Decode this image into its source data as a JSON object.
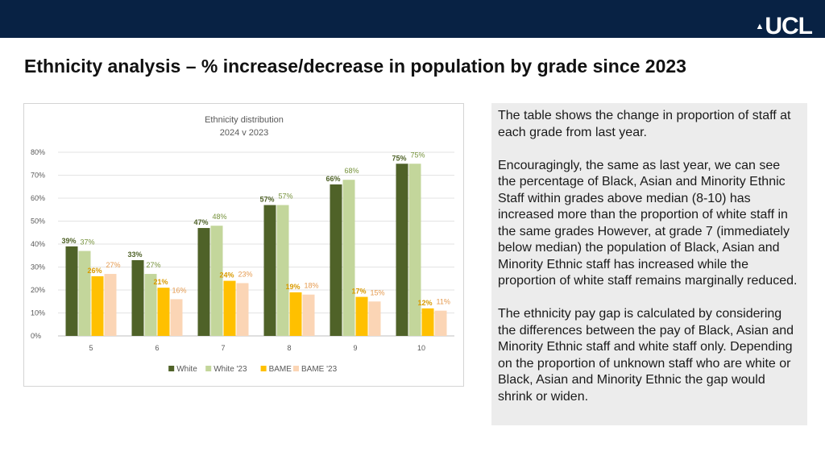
{
  "header": {
    "logo_text": "UCL",
    "logo_crest_icon": "ucl-dome-icon"
  },
  "page": {
    "title": "Ethnicity analysis – % increase/decrease in population by grade since 2023"
  },
  "description": {
    "paragraphs": [
      "The table shows the change in proportion of staff at each grade from last year.",
      "Encouragingly, the same as last year, we can see the percentage of Black, Asian and Minority Ethnic Staff within grades above median (8-10) has increased more than the proportion of white staff in the same grades However, at grade 7 (immediately below median) the population of Black, Asian and Minority Ethnic staff has increased while the proportion of white staff remains marginally reduced.",
      "The ethnicity pay gap is calculated by considering the differences between the pay of Black, Asian and Minority Ethnic staff and white staff only. Depending on the proportion of unknown staff who are white or Black, Asian and Minority Ethnic the gap would shrink or widen."
    ]
  },
  "chart_data": {
    "type": "bar",
    "title": "Ethnicity distribution",
    "subtitle": "2024 v 2023",
    "categories": [
      "5",
      "6",
      "7",
      "8",
      "9",
      "10"
    ],
    "ylim": [
      0,
      80
    ],
    "yticks": [
      "0%",
      "10%",
      "20%",
      "30%",
      "40%",
      "50%",
      "60%",
      "70%",
      "80%"
    ],
    "xlabel": "",
    "ylabel": "",
    "grid": true,
    "legend_position": "bottom",
    "series": [
      {
        "name": "White",
        "color": "#4f6228",
        "label_color": "#4f6228",
        "bold": true,
        "values": [
          39,
          33,
          47,
          57,
          66,
          75
        ],
        "labels": [
          "39%",
          "33%",
          "47%",
          "57%",
          "66%",
          "75%"
        ]
      },
      {
        "name": "White '23",
        "color": "#c3d69b",
        "label_color": "#76923c",
        "bold": false,
        "values": [
          37,
          27,
          48,
          57,
          68,
          75
        ],
        "labels": [
          "37%",
          "27%",
          "48%",
          "57%",
          "68%",
          "75%"
        ]
      },
      {
        "name": "BAME",
        "color": "#ffc000",
        "label_color": "#d99a00",
        "bold": true,
        "values": [
          26,
          21,
          24,
          19,
          17,
          12
        ],
        "labels": [
          "26%",
          "21%",
          "24%",
          "19%",
          "17%",
          "12%"
        ]
      },
      {
        "name": "BAME '23",
        "color": "#fbd5b5",
        "label_color": "#e59a4f",
        "bold": false,
        "values": [
          27,
          16,
          23,
          18,
          15,
          11
        ],
        "labels": [
          "27%",
          "16%",
          "23%",
          "18%",
          "15%",
          "11%"
        ]
      }
    ]
  }
}
